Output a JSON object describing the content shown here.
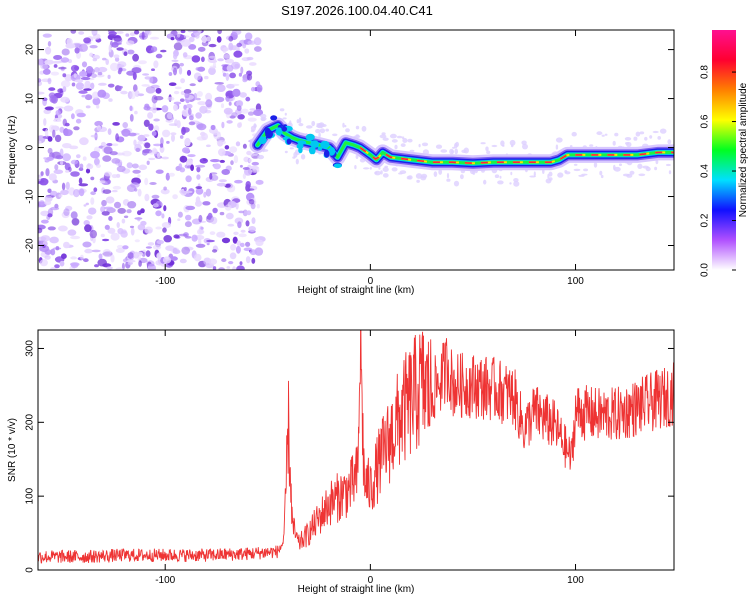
{
  "title": "S197.2026.100.04.40.C41",
  "chart_data": [
    {
      "type": "heatmap",
      "name": "spectrogram",
      "xlabel": "Height of straight line (km)",
      "ylabel": "Frequency (Hz)",
      "xlim": [
        -162,
        148
      ],
      "ylim": [
        -25,
        24
      ],
      "xticks": [
        -100,
        0,
        100
      ],
      "yticks": [
        -20,
        -10,
        0,
        10,
        20
      ],
      "noise_region_x": [
        -162,
        -55
      ],
      "signal_trace": {
        "x": [
          -55,
          -50,
          -45,
          -42,
          -38,
          -35,
          -30,
          -25,
          -20,
          -16,
          -12,
          -8,
          -5,
          0,
          3,
          6,
          10,
          20,
          30,
          40,
          50,
          60,
          70,
          80,
          88,
          92,
          96,
          100,
          110,
          120,
          130,
          140,
          148
        ],
        "y": [
          0.5,
          3.5,
          4.5,
          3.0,
          2.0,
          1.5,
          1.0,
          0.5,
          0.0,
          -2.0,
          1.0,
          0.5,
          0.0,
          -1.5,
          -2.5,
          -1.0,
          -2.0,
          -2.5,
          -3.0,
          -3.0,
          -3.2,
          -3.0,
          -3.0,
          -3.0,
          -3.0,
          -2.5,
          -1.5,
          -1.5,
          -1.5,
          -1.5,
          -1.5,
          -1.0,
          -1.0
        ]
      },
      "colorbar": {
        "label": "Normalized spectral amplitude",
        "ticks": [
          0.0,
          0.2,
          0.4,
          0.6,
          0.8
        ],
        "range": [
          0,
          0.97
        ],
        "colors": [
          "#ffffff",
          "#b050ff",
          "#1010ff",
          "#00e0ff",
          "#00ff20",
          "#ffff00",
          "#ff8000",
          "#ff0030",
          "#ff1090"
        ]
      }
    },
    {
      "type": "line",
      "name": "snr",
      "xlabel": "Height of straight line (km)",
      "ylabel": "SNR (10 * v/v)",
      "xlim": [
        -162,
        148
      ],
      "ylim": [
        0,
        325
      ],
      "xticks": [
        -100,
        0,
        100
      ],
      "yticks": [
        0,
        100,
        200,
        300
      ],
      "color": "#ee3333",
      "series": [
        {
          "name": "SNR",
          "x": [
            -162,
            -140,
            -120,
            -100,
            -80,
            -60,
            -45,
            -42,
            -40,
            -38,
            -35,
            -30,
            -25,
            -20,
            -15,
            -10,
            -6,
            -5,
            -3,
            0,
            5,
            10,
            15,
            20,
            25,
            30,
            35,
            38,
            40,
            50,
            60,
            70,
            75,
            80,
            90,
            98,
            100,
            110,
            120,
            130,
            140,
            145,
            148
          ],
          "values": [
            18,
            18,
            20,
            20,
            20,
            22,
            25,
            40,
            200,
            60,
            35,
            50,
            70,
            90,
            100,
            110,
            130,
            320,
            120,
            110,
            150,
            180,
            210,
            230,
            250,
            240,
            260,
            280,
            250,
            250,
            245,
            235,
            190,
            215,
            195,
            150,
            215,
            210,
            210,
            220,
            230,
            235,
            240
          ]
        }
      ]
    }
  ]
}
